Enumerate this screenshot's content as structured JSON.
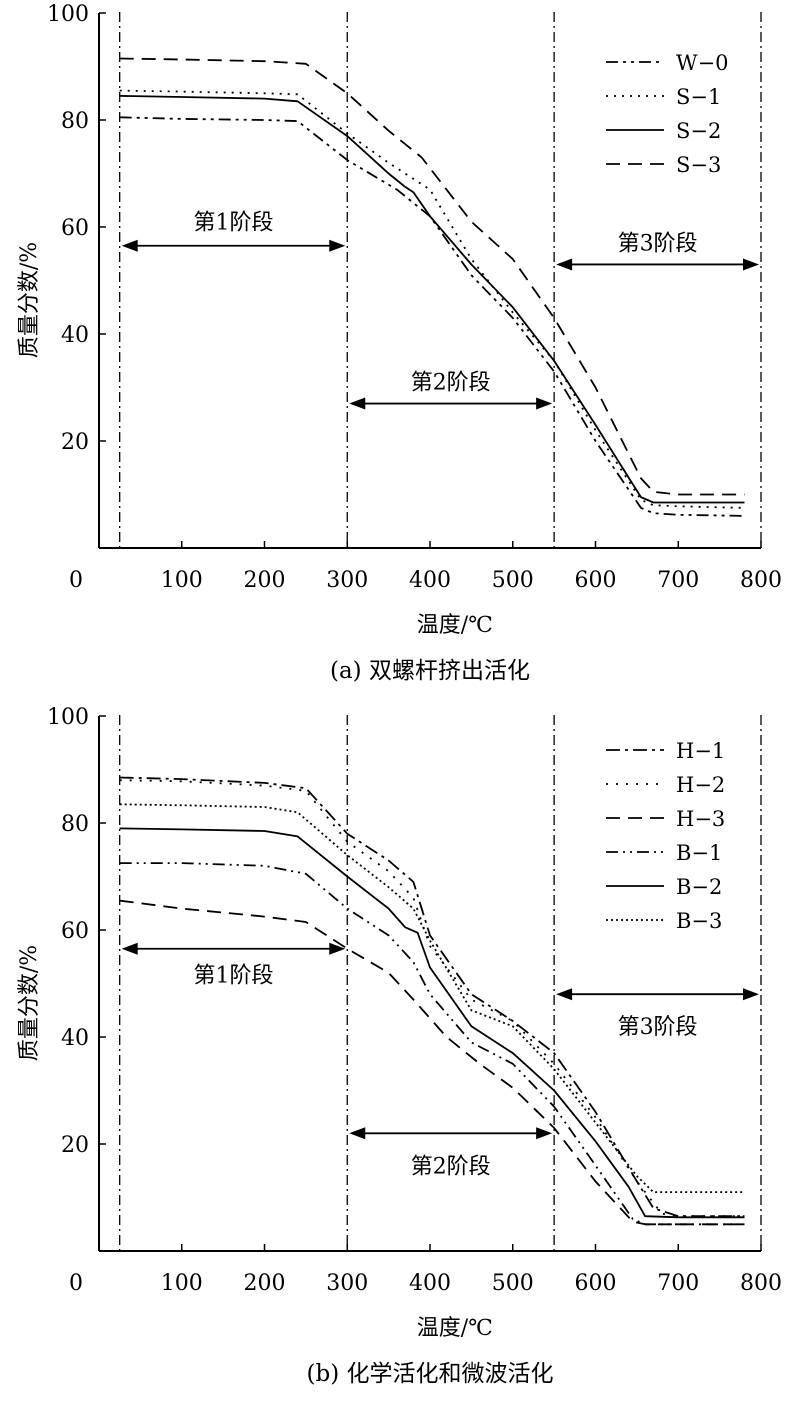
{
  "chart_data": [
    {
      "type": "line",
      "caption": "(a) 双螺杆挤出活化",
      "xlabel": "温度/℃",
      "ylabel": "质量分数/%",
      "xlim": [
        0,
        800
      ],
      "ylim": [
        0,
        100
      ],
      "x_ticks": [
        "0",
        "100",
        "200",
        "300",
        "400",
        "500",
        "600",
        "700",
        "800"
      ],
      "y_ticks": [
        "20",
        "40",
        "60",
        "80",
        "100"
      ],
      "stage_boundaries": [
        25,
        300,
        550,
        800
      ],
      "stages": [
        {
          "label": "第1阶段",
          "from": 25,
          "to": 300,
          "y": 56.5
        },
        {
          "label": "第2阶段",
          "from": 300,
          "to": 550,
          "y": 27
        },
        {
          "label": "第3阶段",
          "from": 550,
          "to": 800,
          "y": 53
        }
      ],
      "legend_position": "top-right",
      "series": [
        {
          "name": "W−0",
          "dash": "12 5 3 5 3 5",
          "x": [
            25,
            100,
            200,
            240,
            300,
            360,
            400,
            450,
            500,
            550,
            600,
            655,
            670,
            700,
            780
          ],
          "y": [
            80.5,
            80.2,
            80,
            79.8,
            72.5,
            67,
            62,
            51,
            43,
            33,
            20,
            7.5,
            6.5,
            6.2,
            6
          ]
        },
        {
          "name": "S−1",
          "dash": "2 6",
          "x": [
            25,
            100,
            200,
            240,
            300,
            350,
            400,
            450,
            500,
            550,
            600,
            655,
            670,
            700,
            780
          ],
          "y": [
            85.5,
            85.3,
            85,
            84.8,
            77.5,
            72,
            67,
            54,
            44,
            35,
            22,
            9,
            8,
            7.8,
            7.5
          ]
        },
        {
          "name": "S−2",
          "dash": "",
          "x": [
            25,
            100,
            200,
            240,
            300,
            350,
            370,
            380,
            400,
            450,
            500,
            550,
            600,
            655,
            670,
            700,
            780
          ],
          "y": [
            84.5,
            84.3,
            84,
            83.5,
            77,
            70,
            67.5,
            66.5,
            62,
            53,
            45,
            35,
            23,
            9.5,
            8.5,
            8.5,
            8.5
          ]
        },
        {
          "name": "S−3",
          "dash": "14 8",
          "x": [
            25,
            100,
            200,
            250,
            300,
            350,
            390,
            450,
            500,
            550,
            600,
            655,
            670,
            700,
            780
          ],
          "y": [
            91.5,
            91.3,
            91,
            90.5,
            85,
            78,
            73,
            61,
            54,
            43,
            30,
            13,
            10.5,
            10,
            10
          ]
        }
      ],
      "legend": [
        "W−0",
        "S−1",
        "S−2",
        "S−3"
      ]
    },
    {
      "type": "line",
      "caption": "(b) 化学活化和微波活化",
      "xlabel": "温度/℃",
      "ylabel": "质量分数/%",
      "xlim": [
        0,
        800
      ],
      "ylim": [
        0,
        100
      ],
      "x_ticks": [
        "0",
        "100",
        "200",
        "300",
        "400",
        "500",
        "600",
        "700",
        "800"
      ],
      "y_ticks": [
        "20",
        "40",
        "60",
        "80",
        "100"
      ],
      "stage_boundaries": [
        25,
        300,
        550,
        800
      ],
      "stages": [
        {
          "label": "第1阶段",
          "from": 25,
          "to": 300,
          "y": 56.5
        },
        {
          "label": "第2阶段",
          "from": 300,
          "to": 550,
          "y": 22
        },
        {
          "label": "第3阶段",
          "from": 550,
          "to": 800,
          "y": 48
        }
      ],
      "legend_position": "top-right",
      "series": [
        {
          "name": "H−1",
          "dash": "14 5 3 5",
          "x": [
            25,
            100,
            200,
            250,
            300,
            350,
            380,
            400,
            450,
            500,
            550,
            600,
            650,
            670,
            700,
            780
          ],
          "y": [
            88.5,
            88.2,
            87.5,
            86.5,
            78,
            73,
            69,
            59,
            48,
            43,
            37,
            26,
            13,
            8,
            6.5,
            6.5
          ]
        },
        {
          "name": "H−2",
          "dash": "2 8",
          "x": [
            25,
            100,
            200,
            250,
            300,
            350,
            380,
            400,
            450,
            500,
            550,
            600,
            650,
            680,
            700,
            780
          ],
          "y": [
            88,
            87.8,
            87,
            86,
            76.5,
            71,
            66,
            57,
            47,
            43,
            35,
            25,
            13,
            7,
            6.5,
            6.5
          ]
        },
        {
          "name": "H−3",
          "dash": "14 8",
          "x": [
            25,
            100,
            200,
            250,
            300,
            350,
            380,
            420,
            460,
            500,
            550,
            600,
            645,
            660,
            700,
            780
          ],
          "y": [
            65.5,
            64,
            62.5,
            61.5,
            56.5,
            52,
            47,
            40,
            35,
            30.5,
            23,
            13,
            5.5,
            5,
            5,
            5
          ]
        },
        {
          "name": "B−1",
          "dash": "12 5 2 5 2 5",
          "x": [
            25,
            100,
            200,
            250,
            300,
            350,
            380,
            400,
            450,
            500,
            550,
            600,
            645,
            660,
            700,
            780
          ],
          "y": [
            72.5,
            72.5,
            72,
            70.5,
            64,
            59,
            54,
            48,
            39,
            35,
            27,
            16,
            6,
            5,
            5,
            5
          ]
        },
        {
          "name": "B−2",
          "dash": "",
          "x": [
            25,
            100,
            200,
            240,
            300,
            350,
            370,
            385,
            400,
            450,
            500,
            550,
            600,
            640,
            660,
            700,
            780
          ],
          "y": [
            79,
            78.8,
            78.5,
            77.5,
            70,
            64,
            60.5,
            59.5,
            53,
            42,
            37,
            30,
            20.5,
            12,
            6.5,
            6.3,
            6.3
          ]
        },
        {
          "name": "B−3",
          "dash": "2 3",
          "x": [
            25,
            100,
            200,
            240,
            300,
            350,
            380,
            400,
            450,
            500,
            550,
            600,
            650,
            670,
            700,
            780
          ],
          "y": [
            83.5,
            83.3,
            83,
            82,
            74,
            68,
            64,
            58,
            45,
            42,
            34,
            24,
            14,
            11,
            11,
            11
          ]
        }
      ],
      "legend": [
        "H−1",
        "H−2",
        "H−3",
        "B−1",
        "B−2",
        "B−3"
      ]
    }
  ]
}
